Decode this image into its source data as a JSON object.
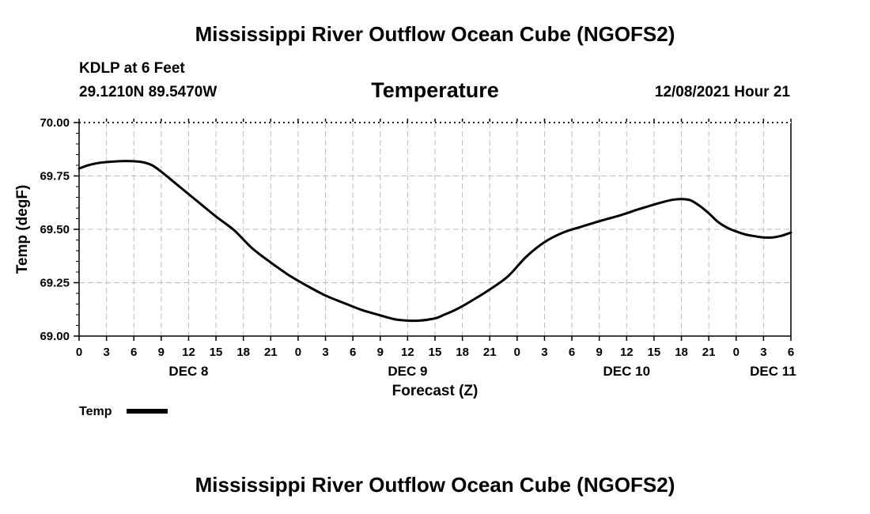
{
  "header": {
    "title": "Mississippi River Outflow Ocean Cube (NGOFS2)",
    "station": "KDLP at 6 Feet",
    "coords": "29.1210N  89.5470W",
    "datetime": "12/08/2021 Hour 21"
  },
  "footer": {
    "title": "Mississippi River Outflow Ocean Cube (NGOFS2)"
  },
  "chart_data": {
    "type": "line",
    "title": "Temperature",
    "xlabel": "Forecast (Z)",
    "ylabel": "Temp (degF)",
    "ylim": [
      69.0,
      70.0
    ],
    "xlim_hours": [
      0,
      78
    ],
    "y_ticks": [
      "70.00",
      "69.75",
      "69.50",
      "69.25",
      "69.00"
    ],
    "y_tick_values": [
      70.0,
      69.75,
      69.5,
      69.25,
      69.0
    ],
    "x_tick_labels": [
      "0",
      "3",
      "6",
      "9",
      "12",
      "15",
      "18",
      "21",
      "0",
      "3",
      "6",
      "9",
      "12",
      "15",
      "18",
      "21",
      "0",
      "3",
      "6",
      "9",
      "12",
      "15",
      "18",
      "21",
      "0",
      "3",
      "6"
    ],
    "day_labels": [
      {
        "label": "DEC 8",
        "hour": 12
      },
      {
        "label": "DEC 9",
        "hour": 36
      },
      {
        "label": "DEC 10",
        "hour": 60
      },
      {
        "label": "DEC 11",
        "hour": 75
      }
    ],
    "grid": true,
    "legend": {
      "label": "Temp",
      "position": "bottom-left"
    },
    "series": [
      {
        "name": "Temp",
        "color": "#000000",
        "x_hours": [
          0,
          1,
          2,
          3,
          4,
          5,
          6,
          7,
          8,
          9,
          11,
          13,
          15,
          17,
          19,
          21,
          23,
          25,
          27,
          29,
          31,
          33,
          34,
          35,
          37,
          39,
          40,
          41,
          42,
          43,
          45,
          47,
          49,
          51,
          53,
          55,
          57,
          58,
          59,
          60,
          61,
          62,
          63,
          64,
          65,
          66,
          67,
          68,
          69,
          70,
          71,
          72,
          73,
          74,
          75,
          76,
          77,
          78
        ],
        "values": [
          69.785,
          69.8,
          69.81,
          69.815,
          69.818,
          69.82,
          69.819,
          69.814,
          69.8,
          69.77,
          69.7,
          69.63,
          69.56,
          69.495,
          69.41,
          69.345,
          69.285,
          69.235,
          69.19,
          69.155,
          69.122,
          69.097,
          69.085,
          69.076,
          69.072,
          69.083,
          69.1,
          69.118,
          69.14,
          69.165,
          69.218,
          69.28,
          69.372,
          69.44,
          69.484,
          69.512,
          69.538,
          69.55,
          69.562,
          69.575,
          69.59,
          69.603,
          69.616,
          69.628,
          69.638,
          69.642,
          69.636,
          69.61,
          69.575,
          69.535,
          69.508,
          69.49,
          69.476,
          69.468,
          69.462,
          69.462,
          69.47,
          69.485
        ]
      }
    ]
  }
}
